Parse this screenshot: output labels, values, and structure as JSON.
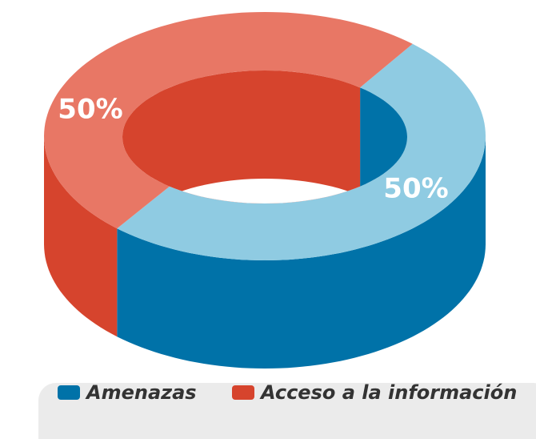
{
  "chart_data": {
    "type": "donut3d",
    "categories": [
      "Amenazas",
      "Acceso a la información"
    ],
    "values": [
      50,
      50
    ],
    "value_labels": [
      "50%",
      "50%"
    ],
    "colors": [
      "#0072a8",
      "#d6442d"
    ],
    "top_colors": [
      "#8fcbe2",
      "#e87765"
    ],
    "legend": "bottom"
  }
}
